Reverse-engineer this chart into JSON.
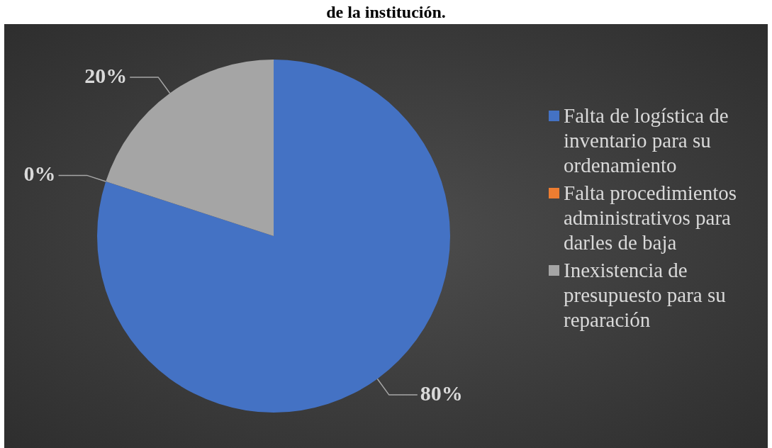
{
  "chart_data": {
    "type": "pie",
    "title": "de la institución.",
    "categories": [
      "Falta de logística de inventario para su ordenamiento",
      "Falta procedimientos administrativos para darles de baja",
      "Inexistencia de presupuesto para su reparación"
    ],
    "values": [
      80,
      0,
      20
    ],
    "colors": [
      "#4472c4",
      "#ed7d31",
      "#a5a5a5"
    ],
    "value_labels": [
      "80%",
      "0%",
      "20%"
    ],
    "legend": "right"
  }
}
